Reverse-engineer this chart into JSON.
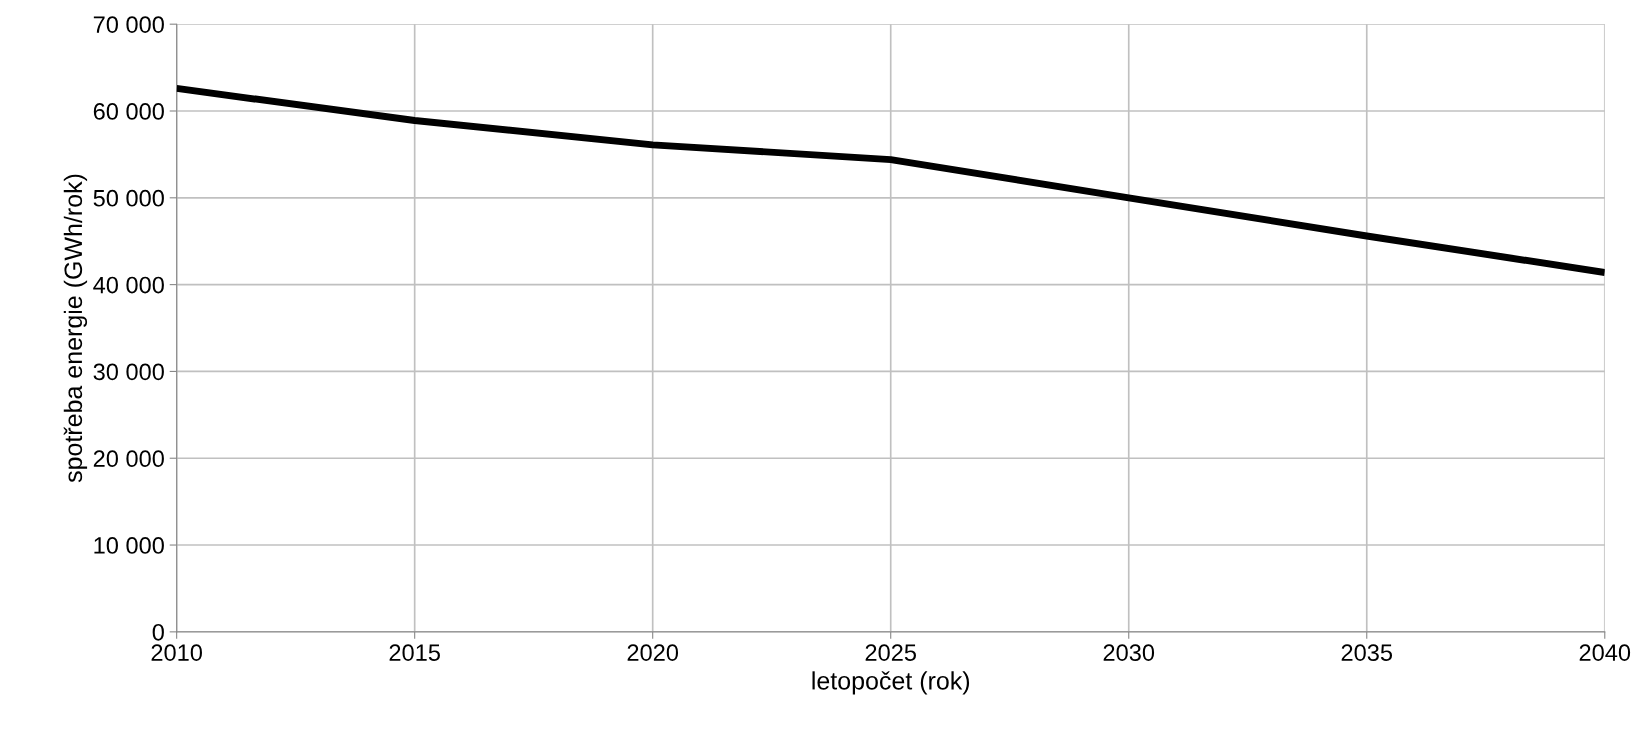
{
  "chart_data": {
    "type": "line",
    "xlabel": "letopočet (rok)",
    "ylabel": "spotřeba energie (GWh/rok)",
    "x": [
      2010,
      2015,
      2020,
      2025,
      2030,
      2035,
      2040
    ],
    "series": [
      {
        "color": "#000000",
        "values": [
          62600,
          58900,
          56100,
          54400,
          50000,
          45600,
          41400
        ]
      }
    ],
    "xlim": [
      2010,
      2040
    ],
    "xticks": [
      2010,
      2015,
      2020,
      2025,
      2030,
      2035,
      2040
    ],
    "ylim": [
      0,
      70000
    ],
    "yticks": [
      0,
      {
        "value": 10000,
        "label": "10 000"
      },
      {
        "value": 20000,
        "label": "20 000"
      },
      {
        "value": 30000,
        "label": "30 000"
      },
      {
        "value": 40000,
        "label": "40 000"
      },
      {
        "value": 50000,
        "label": "50 000"
      },
      {
        "value": 60000,
        "label": "60 000"
      },
      {
        "value": 70000,
        "label": "70 000"
      }
    ],
    "grid": true,
    "legend": false,
    "marker": "none",
    "line_style": "solid"
  }
}
